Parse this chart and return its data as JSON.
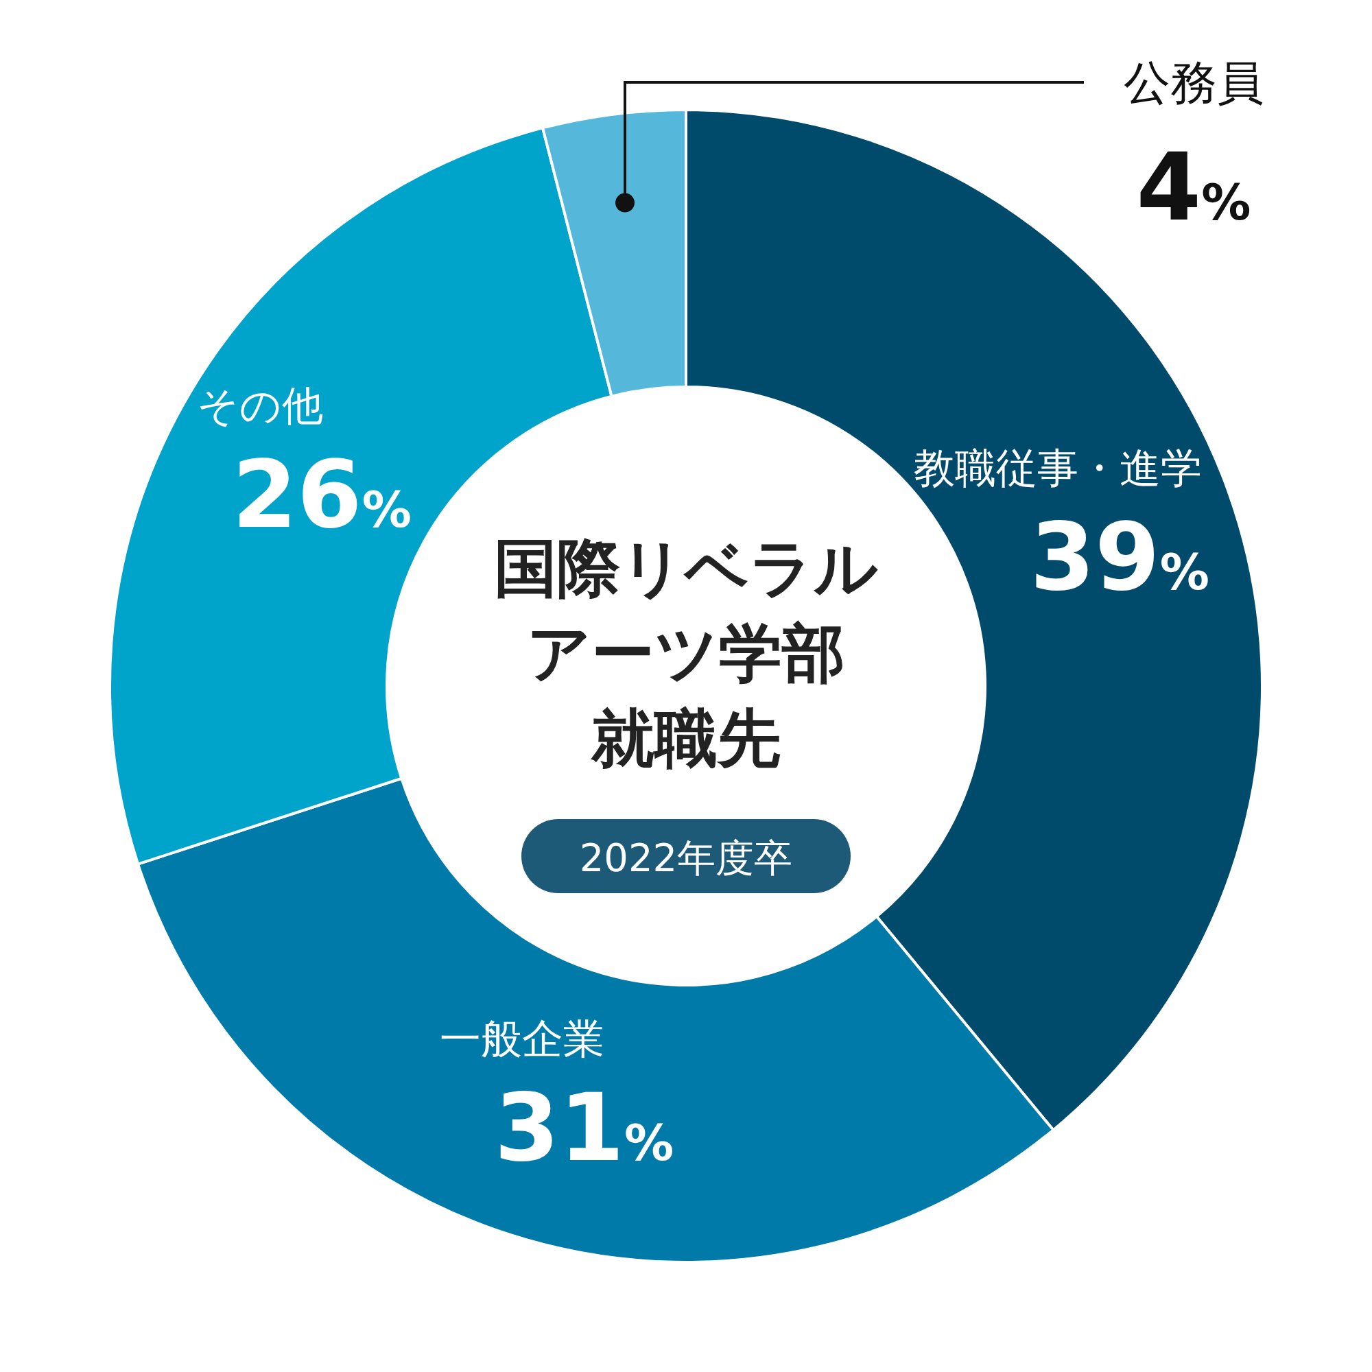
{
  "chart_data": {
    "type": "donut",
    "title": "国際リベラルアーツ学部就職先",
    "subtitle": "2022年度卒",
    "categories": [
      "教職従事・進学",
      "一般企業",
      "その他",
      "公務員"
    ],
    "values": [
      39,
      31,
      26,
      4
    ],
    "value_labels": [
      "39%",
      "31%",
      "26%",
      "4%"
    ],
    "colors": [
      "#004a6b",
      "#007aa8",
      "#00a3c9",
      "#55b8db"
    ]
  }
}
